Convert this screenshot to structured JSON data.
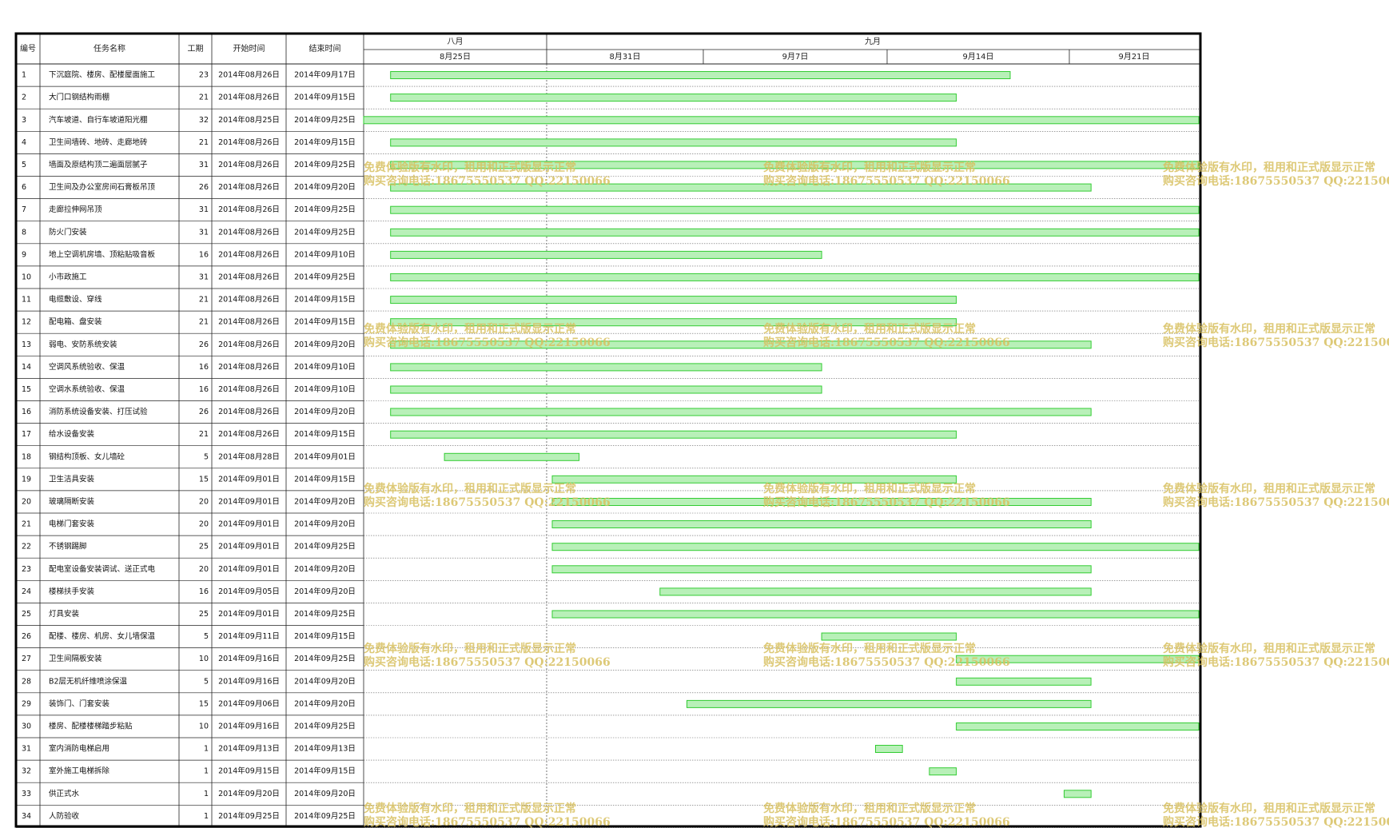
{
  "colors": {
    "bar_fill": "#b8f0b8",
    "bar_stroke": "#33cc33",
    "grid": "#222222",
    "frame": "#000000",
    "watermark": "#d8c060"
  },
  "columns": {
    "id": "编号",
    "name": "任务名称",
    "duration": "工期",
    "start": "开始时间",
    "end": "结束时间"
  },
  "timeline": {
    "months": [
      "八月",
      "九月"
    ],
    "weeks": [
      "8月25日",
      "8月31日",
      "9月7日",
      "9月14日",
      "9月21日"
    ]
  },
  "watermark": {
    "line1": "免费体验版有水印，租用和正式版显示正常",
    "line2": "购买咨询电话:18675550537 QQ:22150066"
  },
  "chart_data": {
    "type": "gantt",
    "x_axis": "date",
    "xlim": [
      "2014-08-25",
      "2014-09-25"
    ],
    "tasks": [
      {
        "id": "1",
        "name": "下沉庭院、楼房、配楼屋面施工",
        "duration": 23,
        "start": "2014年08月26日",
        "end": "2014年09月17日",
        "s": "2014-08-26",
        "e": "2014-09-17"
      },
      {
        "id": "2",
        "name": "大门口钢结构雨棚",
        "duration": 21,
        "start": "2014年08月26日",
        "end": "2014年09月15日",
        "s": "2014-08-26",
        "e": "2014-09-15"
      },
      {
        "id": "3",
        "name": "汽车坡道、自行车坡道阳光棚",
        "duration": 32,
        "start": "2014年08月25日",
        "end": "2014年09月25日",
        "s": "2014-08-25",
        "e": "2014-09-25"
      },
      {
        "id": "4",
        "name": "卫生间墙砖、地砖、走廊地砖",
        "duration": 21,
        "start": "2014年08月26日",
        "end": "2014年09月15日",
        "s": "2014-08-26",
        "e": "2014-09-15"
      },
      {
        "id": "5",
        "name": "墙面及原结构顶二遍面层腻子",
        "duration": 31,
        "start": "2014年08月26日",
        "end": "2014年09月25日",
        "s": "2014-08-26",
        "e": "2014-09-25"
      },
      {
        "id": "6",
        "name": "卫生间及办公室房间石膏板吊顶",
        "duration": 26,
        "start": "2014年08月26日",
        "end": "2014年09月20日",
        "s": "2014-08-26",
        "e": "2014-09-20"
      },
      {
        "id": "7",
        "name": "走廊拉伸网吊顶",
        "duration": 31,
        "start": "2014年08月26日",
        "end": "2014年09月25日",
        "s": "2014-08-26",
        "e": "2014-09-25"
      },
      {
        "id": "8",
        "name": "防火门安装",
        "duration": 31,
        "start": "2014年08月26日",
        "end": "2014年09月25日",
        "s": "2014-08-26",
        "e": "2014-09-25"
      },
      {
        "id": "9",
        "name": "地上空调机房墙、顶粘贴吸音板",
        "duration": 16,
        "start": "2014年08月26日",
        "end": "2014年09月10日",
        "s": "2014-08-26",
        "e": "2014-09-10"
      },
      {
        "id": "10",
        "name": "小市政施工",
        "duration": 31,
        "start": "2014年08月26日",
        "end": "2014年09月25日",
        "s": "2014-08-26",
        "e": "2014-09-25"
      },
      {
        "id": "11",
        "name": "电缆敷设、穿线",
        "duration": 21,
        "start": "2014年08月26日",
        "end": "2014年09月15日",
        "s": "2014-08-26",
        "e": "2014-09-15"
      },
      {
        "id": "12",
        "name": "配电箱、盘安装",
        "duration": 21,
        "start": "2014年08月26日",
        "end": "2014年09月15日",
        "s": "2014-08-26",
        "e": "2014-09-15"
      },
      {
        "id": "13",
        "name": "弱电、安防系统安装",
        "duration": 26,
        "start": "2014年08月26日",
        "end": "2014年09月20日",
        "s": "2014-08-26",
        "e": "2014-09-20"
      },
      {
        "id": "14",
        "name": "空调风系统验收、保温",
        "duration": 16,
        "start": "2014年08月26日",
        "end": "2014年09月10日",
        "s": "2014-08-26",
        "e": "2014-09-10"
      },
      {
        "id": "15",
        "name": "空调水系统验收、保温",
        "duration": 16,
        "start": "2014年08月26日",
        "end": "2014年09月10日",
        "s": "2014-08-26",
        "e": "2014-09-10"
      },
      {
        "id": "16",
        "name": "消防系统设备安装、打压试验",
        "duration": 26,
        "start": "2014年08月26日",
        "end": "2014年09月20日",
        "s": "2014-08-26",
        "e": "2014-09-20"
      },
      {
        "id": "17",
        "name": "给水设备安装",
        "duration": 21,
        "start": "2014年08月26日",
        "end": "2014年09月15日",
        "s": "2014-08-26",
        "e": "2014-09-15"
      },
      {
        "id": "18",
        "name": "钢结构顶板、女儿墙砼",
        "duration": 5,
        "start": "2014年08月28日",
        "end": "2014年09月01日",
        "s": "2014-08-28",
        "e": "2014-09-01"
      },
      {
        "id": "19",
        "name": "卫生洁具安装",
        "duration": 15,
        "start": "2014年09月01日",
        "end": "2014年09月15日",
        "s": "2014-09-01",
        "e": "2014-09-15"
      },
      {
        "id": "20",
        "name": "玻璃隔断安装",
        "duration": 20,
        "start": "2014年09月01日",
        "end": "2014年09月20日",
        "s": "2014-09-01",
        "e": "2014-09-20"
      },
      {
        "id": "21",
        "name": "电梯门套安装",
        "duration": 20,
        "start": "2014年09月01日",
        "end": "2014年09月20日",
        "s": "2014-09-01",
        "e": "2014-09-20"
      },
      {
        "id": "22",
        "name": "不锈钢踢脚",
        "duration": 25,
        "start": "2014年09月01日",
        "end": "2014年09月25日",
        "s": "2014-09-01",
        "e": "2014-09-25"
      },
      {
        "id": "23",
        "name": "配电室设备安装调试、送正式电",
        "duration": 20,
        "start": "2014年09月01日",
        "end": "2014年09月20日",
        "s": "2014-09-01",
        "e": "2014-09-20"
      },
      {
        "id": "24",
        "name": "楼梯扶手安装",
        "duration": 16,
        "start": "2014年09月05日",
        "end": "2014年09月20日",
        "s": "2014-09-05",
        "e": "2014-09-20"
      },
      {
        "id": "25",
        "name": "灯具安装",
        "duration": 25,
        "start": "2014年09月01日",
        "end": "2014年09月25日",
        "s": "2014-09-01",
        "e": "2014-09-25"
      },
      {
        "id": "26",
        "name": "配楼、楼房、机房、女儿墙保温",
        "duration": 5,
        "start": "2014年09月11日",
        "end": "2014年09月15日",
        "s": "2014-09-11",
        "e": "2014-09-15"
      },
      {
        "id": "27",
        "name": "卫生间隔板安装",
        "duration": 10,
        "start": "2014年09月16日",
        "end": "2014年09月25日",
        "s": "2014-09-16",
        "e": "2014-09-25"
      },
      {
        "id": "28",
        "name": "B2层无机纤维喷涂保温",
        "duration": 5,
        "start": "2014年09月16日",
        "end": "2014年09月20日",
        "s": "2014-09-16",
        "e": "2014-09-20"
      },
      {
        "id": "29",
        "name": "装饰门、门套安装",
        "duration": 15,
        "start": "2014年09月06日",
        "end": "2014年09月20日",
        "s": "2014-09-06",
        "e": "2014-09-20"
      },
      {
        "id": "30",
        "name": "楼房、配楼楼梯踏步粘贴",
        "duration": 10,
        "start": "2014年09月16日",
        "end": "2014年09月25日",
        "s": "2014-09-16",
        "e": "2014-09-25"
      },
      {
        "id": "31",
        "name": "室内消防电梯启用",
        "duration": 1,
        "start": "2014年09月13日",
        "end": "2014年09月13日",
        "s": "2014-09-13",
        "e": "2014-09-13"
      },
      {
        "id": "32",
        "name": "室外施工电梯拆除",
        "duration": 1,
        "start": "2014年09月15日",
        "end": "2014年09月15日",
        "s": "2014-09-15",
        "e": "2014-09-15"
      },
      {
        "id": "33",
        "name": "供正式水",
        "duration": 1,
        "start": "2014年09月20日",
        "end": "2014年09月20日",
        "s": "2014-09-20",
        "e": "2014-09-20"
      },
      {
        "id": "34",
        "name": "人防验收",
        "duration": 1,
        "start": "2014年09月25日",
        "end": "2014年09月25日",
        "s": "2014-09-25",
        "e": "2014-09-25"
      }
    ]
  }
}
